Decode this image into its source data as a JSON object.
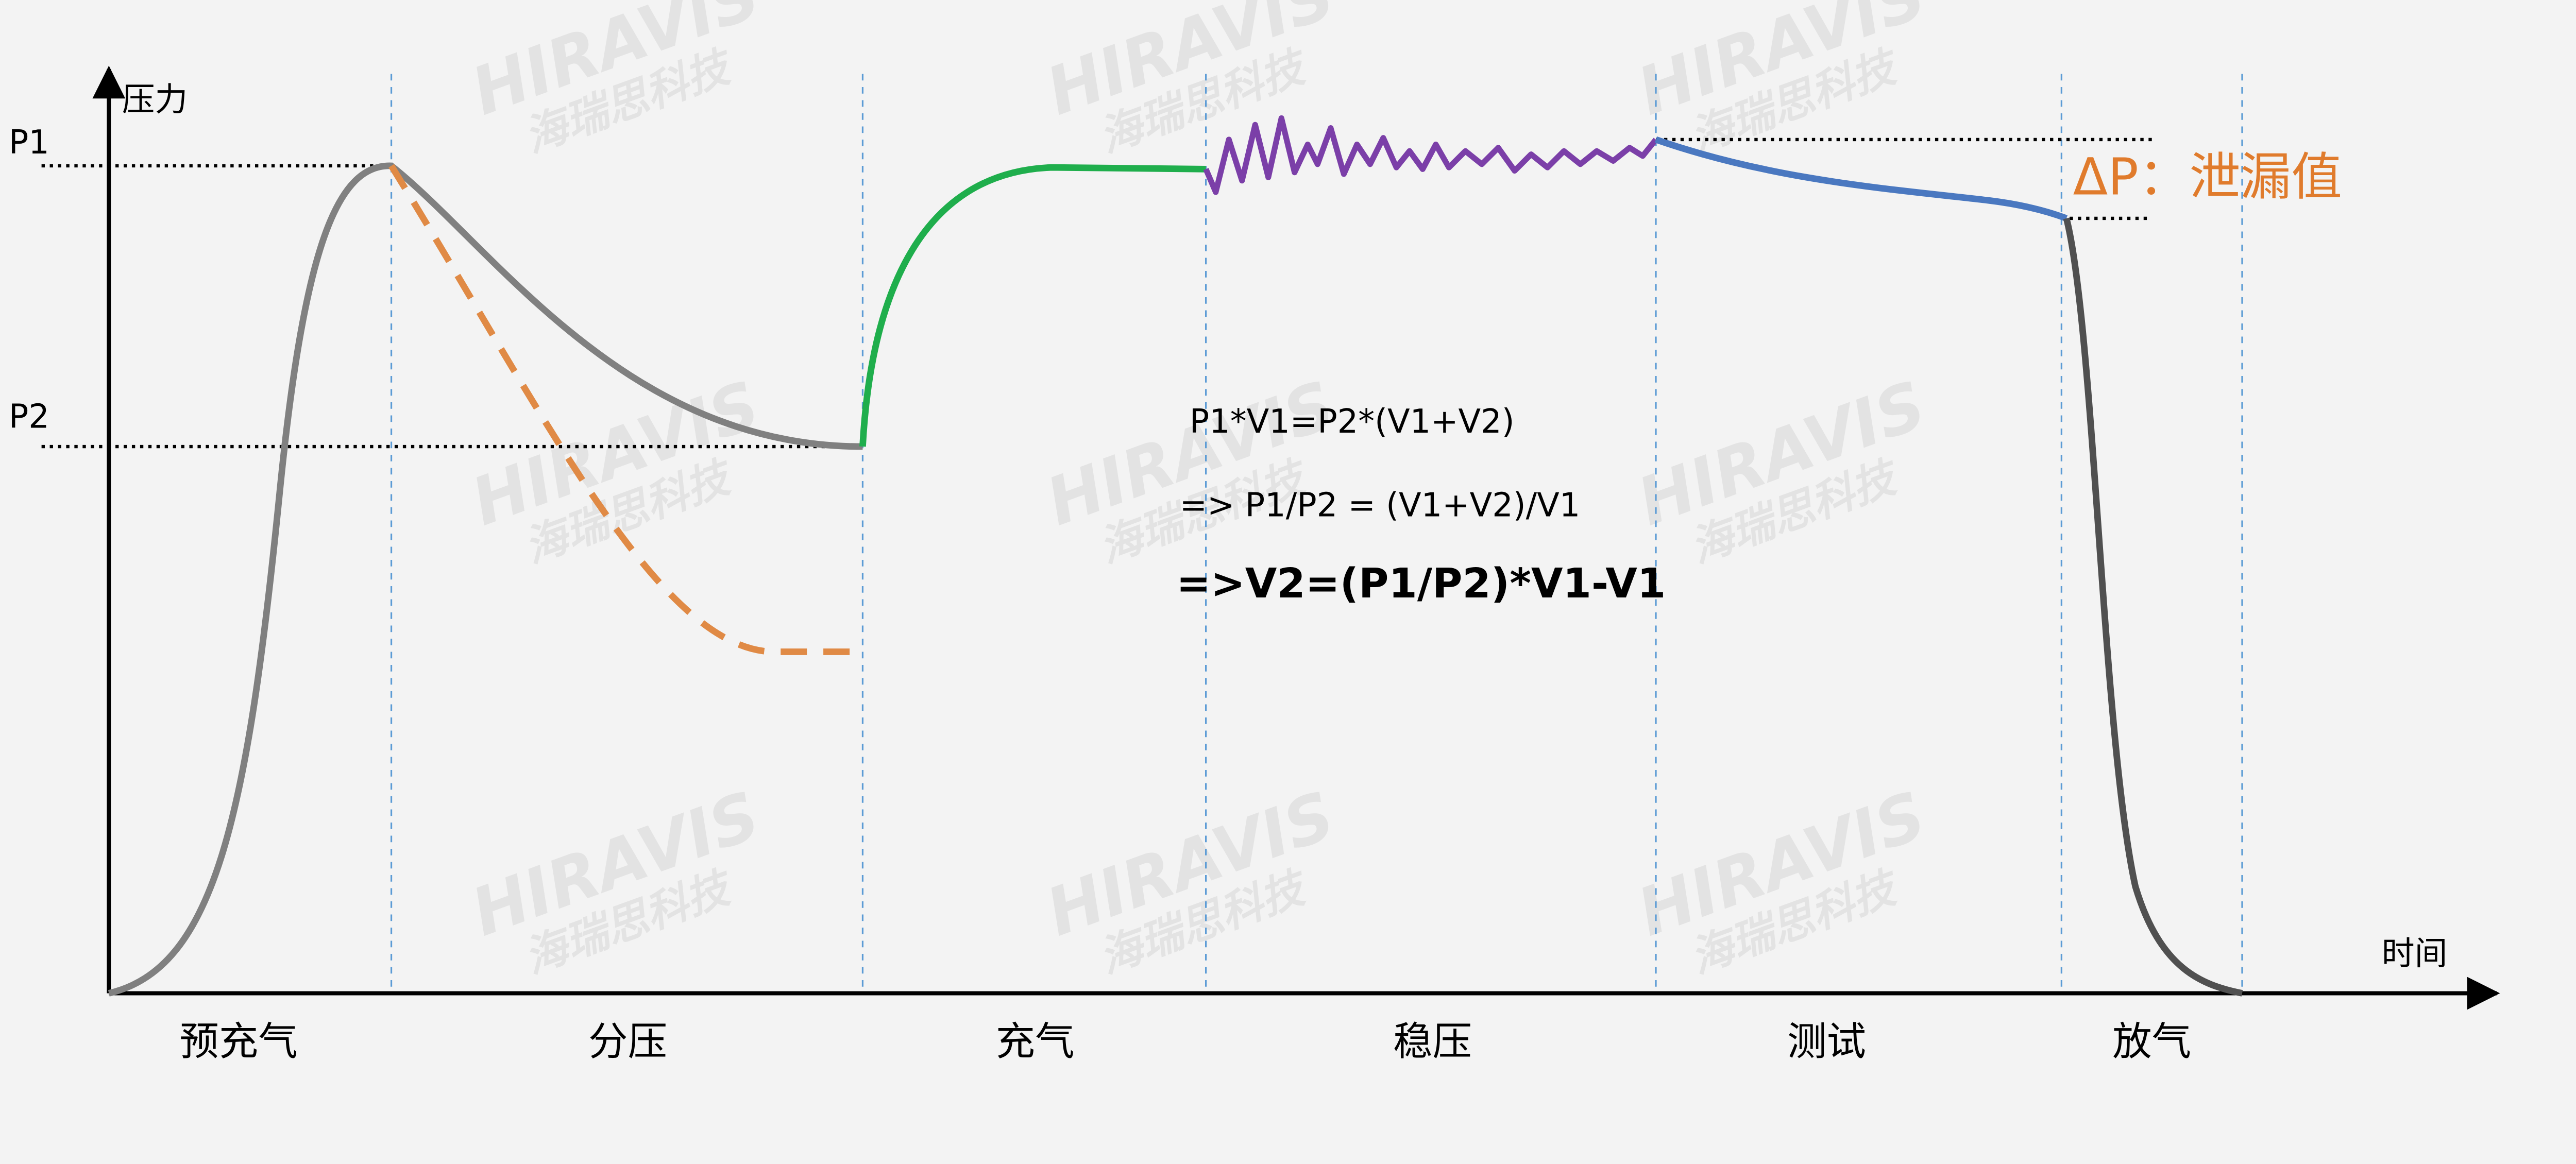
{
  "axis_labels": {
    "y": "压力",
    "x": "时间"
  },
  "levels": {
    "p1": "P1",
    "p2": "P2"
  },
  "phases": [
    "预充气",
    "分压",
    "充气",
    "稳压",
    "测试",
    "放气"
  ],
  "equations": [
    "P1*V1=P2*(V1+V2)",
    "=> P1/P2 = (V1+V2)/V1",
    "=>V2=(P1/P2)*V1-V1"
  ],
  "leak_label": "ΔP：泄漏值",
  "watermark": [
    "HIRAVIS",
    "海瑞思科技"
  ]
}
